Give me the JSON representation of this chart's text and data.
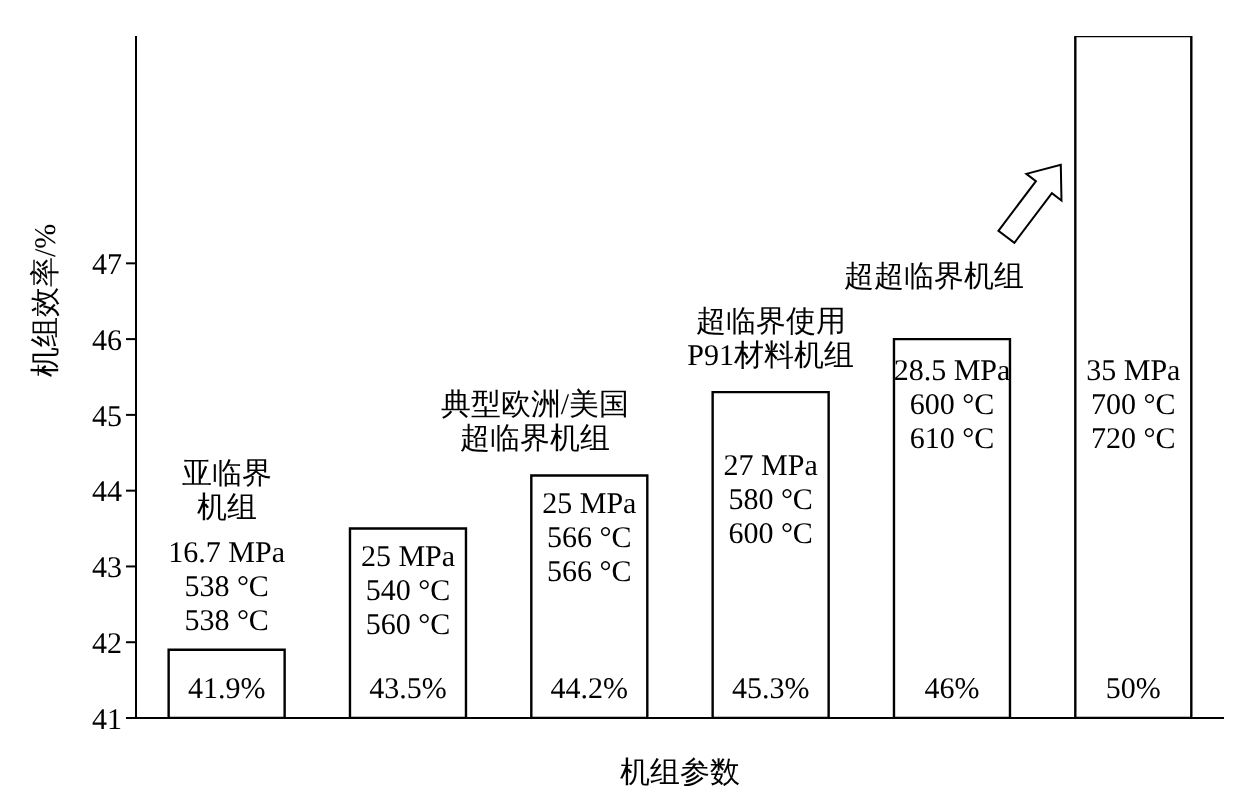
{
  "chart_data": {
    "type": "bar",
    "xlabel": "机组参数",
    "ylabel": "机组效率/%",
    "categories": [
      null,
      null,
      null,
      null,
      null,
      null
    ],
    "values": [
      41.9,
      43.5,
      44.2,
      45.3,
      46,
      50
    ],
    "value_labels": [
      "41.9%",
      "43.5%",
      "44.2%",
      "45.3%",
      "46%",
      "50%"
    ],
    "color": "#ffffff",
    "ylim": [
      41,
      50
    ],
    "yticks": [
      41,
      42,
      43,
      44,
      45,
      46,
      47
    ],
    "grid": false,
    "tick_labels": "y",
    "annotations": [
      "亚临界",
      "机组",
      "16.7 MPa\n538 °C\n538 °C",
      "25 MPa\n540 °C\n560 °C",
      "典型欧洲/美国",
      "超临界机组",
      "25 MPa\n566 °C\n566 °C",
      "超临界使用",
      "P91材料机组",
      "27 MPa\n580 °C\n600 °C",
      "28.5 MPa\n600 °C\n610 °C",
      "超超临界机组",
      "35 MPa\n700 °C\n720 °C"
    ]
  }
}
